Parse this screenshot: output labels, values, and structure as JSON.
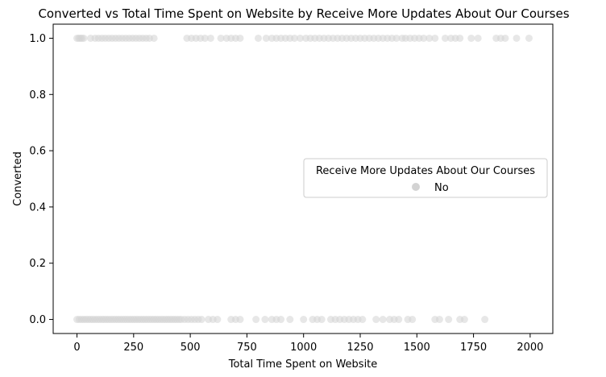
{
  "chart_data": {
    "type": "scatter",
    "title": "Converted vs Total Time Spent on Website by Receive More Updates About Our Courses",
    "xlabel": "Total Time Spent on Website",
    "ylabel": "Converted",
    "xlim": [
      -105,
      2100
    ],
    "ylim": [
      -0.05,
      1.05
    ],
    "xticks": [
      0,
      250,
      500,
      750,
      1000,
      1250,
      1500,
      1750,
      2000
    ],
    "xtick_labels": [
      "0",
      "250",
      "500",
      "750",
      "1000",
      "1250",
      "1500",
      "1750",
      "2000"
    ],
    "yticks": [
      0.0,
      0.2,
      0.4,
      0.6,
      0.8,
      1.0
    ],
    "ytick_labels": [
      "0.0",
      "0.2",
      "0.4",
      "0.6",
      "0.8",
      "1.0"
    ],
    "grid": false,
    "legend": {
      "title": "Receive More Updates About Our Courses",
      "position": "center-right"
    },
    "series": [
      {
        "name": "No",
        "color": "#d3d3d3",
        "points": [
          [
            0,
            1
          ],
          [
            8,
            1
          ],
          [
            15,
            1
          ],
          [
            22,
            1
          ],
          [
            30,
            1
          ],
          [
            60,
            1
          ],
          [
            80,
            1
          ],
          [
            95,
            1
          ],
          [
            110,
            1
          ],
          [
            125,
            1
          ],
          [
            140,
            1
          ],
          [
            155,
            1
          ],
          [
            170,
            1
          ],
          [
            185,
            1
          ],
          [
            200,
            1
          ],
          [
            215,
            1
          ],
          [
            230,
            1
          ],
          [
            245,
            1
          ],
          [
            260,
            1
          ],
          [
            275,
            1
          ],
          [
            290,
            1
          ],
          [
            305,
            1
          ],
          [
            320,
            1
          ],
          [
            340,
            1
          ],
          [
            485,
            1
          ],
          [
            505,
            1
          ],
          [
            525,
            1
          ],
          [
            545,
            1
          ],
          [
            565,
            1
          ],
          [
            590,
            1
          ],
          [
            635,
            1
          ],
          [
            660,
            1
          ],
          [
            680,
            1
          ],
          [
            700,
            1
          ],
          [
            720,
            1
          ],
          [
            800,
            1
          ],
          [
            835,
            1
          ],
          [
            860,
            1
          ],
          [
            880,
            1
          ],
          [
            900,
            1
          ],
          [
            920,
            1
          ],
          [
            940,
            1
          ],
          [
            960,
            1
          ],
          [
            985,
            1
          ],
          [
            1010,
            1
          ],
          [
            1030,
            1
          ],
          [
            1050,
            1
          ],
          [
            1070,
            1
          ],
          [
            1090,
            1
          ],
          [
            1110,
            1
          ],
          [
            1130,
            1
          ],
          [
            1150,
            1
          ],
          [
            1170,
            1
          ],
          [
            1190,
            1
          ],
          [
            1210,
            1
          ],
          [
            1230,
            1
          ],
          [
            1250,
            1
          ],
          [
            1270,
            1
          ],
          [
            1290,
            1
          ],
          [
            1310,
            1
          ],
          [
            1330,
            1
          ],
          [
            1350,
            1
          ],
          [
            1370,
            1
          ],
          [
            1390,
            1
          ],
          [
            1410,
            1
          ],
          [
            1435,
            1
          ],
          [
            1450,
            1
          ],
          [
            1470,
            1
          ],
          [
            1490,
            1
          ],
          [
            1510,
            1
          ],
          [
            1530,
            1
          ],
          [
            1555,
            1
          ],
          [
            1580,
            1
          ],
          [
            1625,
            1
          ],
          [
            1650,
            1
          ],
          [
            1670,
            1
          ],
          [
            1690,
            1
          ],
          [
            1740,
            1
          ],
          [
            1770,
            1
          ],
          [
            1850,
            1
          ],
          [
            1870,
            1
          ],
          [
            1890,
            1
          ],
          [
            1940,
            1
          ],
          [
            1995,
            1
          ],
          [
            0,
            0
          ],
          [
            10,
            0
          ],
          [
            20,
            0
          ],
          [
            30,
            0
          ],
          [
            40,
            0
          ],
          [
            50,
            0
          ],
          [
            60,
            0
          ],
          [
            70,
            0
          ],
          [
            80,
            0
          ],
          [
            90,
            0
          ],
          [
            100,
            0
          ],
          [
            110,
            0
          ],
          [
            120,
            0
          ],
          [
            130,
            0
          ],
          [
            140,
            0
          ],
          [
            150,
            0
          ],
          [
            160,
            0
          ],
          [
            170,
            0
          ],
          [
            180,
            0
          ],
          [
            190,
            0
          ],
          [
            200,
            0
          ],
          [
            210,
            0
          ],
          [
            220,
            0
          ],
          [
            230,
            0
          ],
          [
            240,
            0
          ],
          [
            250,
            0
          ],
          [
            260,
            0
          ],
          [
            270,
            0
          ],
          [
            280,
            0
          ],
          [
            290,
            0
          ],
          [
            300,
            0
          ],
          [
            310,
            0
          ],
          [
            320,
            0
          ],
          [
            330,
            0
          ],
          [
            340,
            0
          ],
          [
            350,
            0
          ],
          [
            360,
            0
          ],
          [
            370,
            0
          ],
          [
            380,
            0
          ],
          [
            390,
            0
          ],
          [
            400,
            0
          ],
          [
            410,
            0
          ],
          [
            420,
            0
          ],
          [
            430,
            0
          ],
          [
            440,
            0
          ],
          [
            450,
            0
          ],
          [
            460,
            0
          ],
          [
            475,
            0
          ],
          [
            490,
            0
          ],
          [
            505,
            0
          ],
          [
            520,
            0
          ],
          [
            535,
            0
          ],
          [
            550,
            0
          ],
          [
            580,
            0
          ],
          [
            600,
            0
          ],
          [
            620,
            0
          ],
          [
            680,
            0
          ],
          [
            700,
            0
          ],
          [
            720,
            0
          ],
          [
            790,
            0
          ],
          [
            830,
            0
          ],
          [
            860,
            0
          ],
          [
            880,
            0
          ],
          [
            900,
            0
          ],
          [
            940,
            0
          ],
          [
            1000,
            0
          ],
          [
            1040,
            0
          ],
          [
            1060,
            0
          ],
          [
            1080,
            0
          ],
          [
            1120,
            0
          ],
          [
            1140,
            0
          ],
          [
            1160,
            0
          ],
          [
            1180,
            0
          ],
          [
            1200,
            0
          ],
          [
            1220,
            0
          ],
          [
            1240,
            0
          ],
          [
            1260,
            0
          ],
          [
            1320,
            0
          ],
          [
            1350,
            0
          ],
          [
            1380,
            0
          ],
          [
            1400,
            0
          ],
          [
            1420,
            0
          ],
          [
            1460,
            0
          ],
          [
            1480,
            0
          ],
          [
            1580,
            0
          ],
          [
            1600,
            0
          ],
          [
            1640,
            0
          ],
          [
            1690,
            0
          ],
          [
            1710,
            0
          ],
          [
            1800,
            0
          ]
        ]
      }
    ]
  }
}
